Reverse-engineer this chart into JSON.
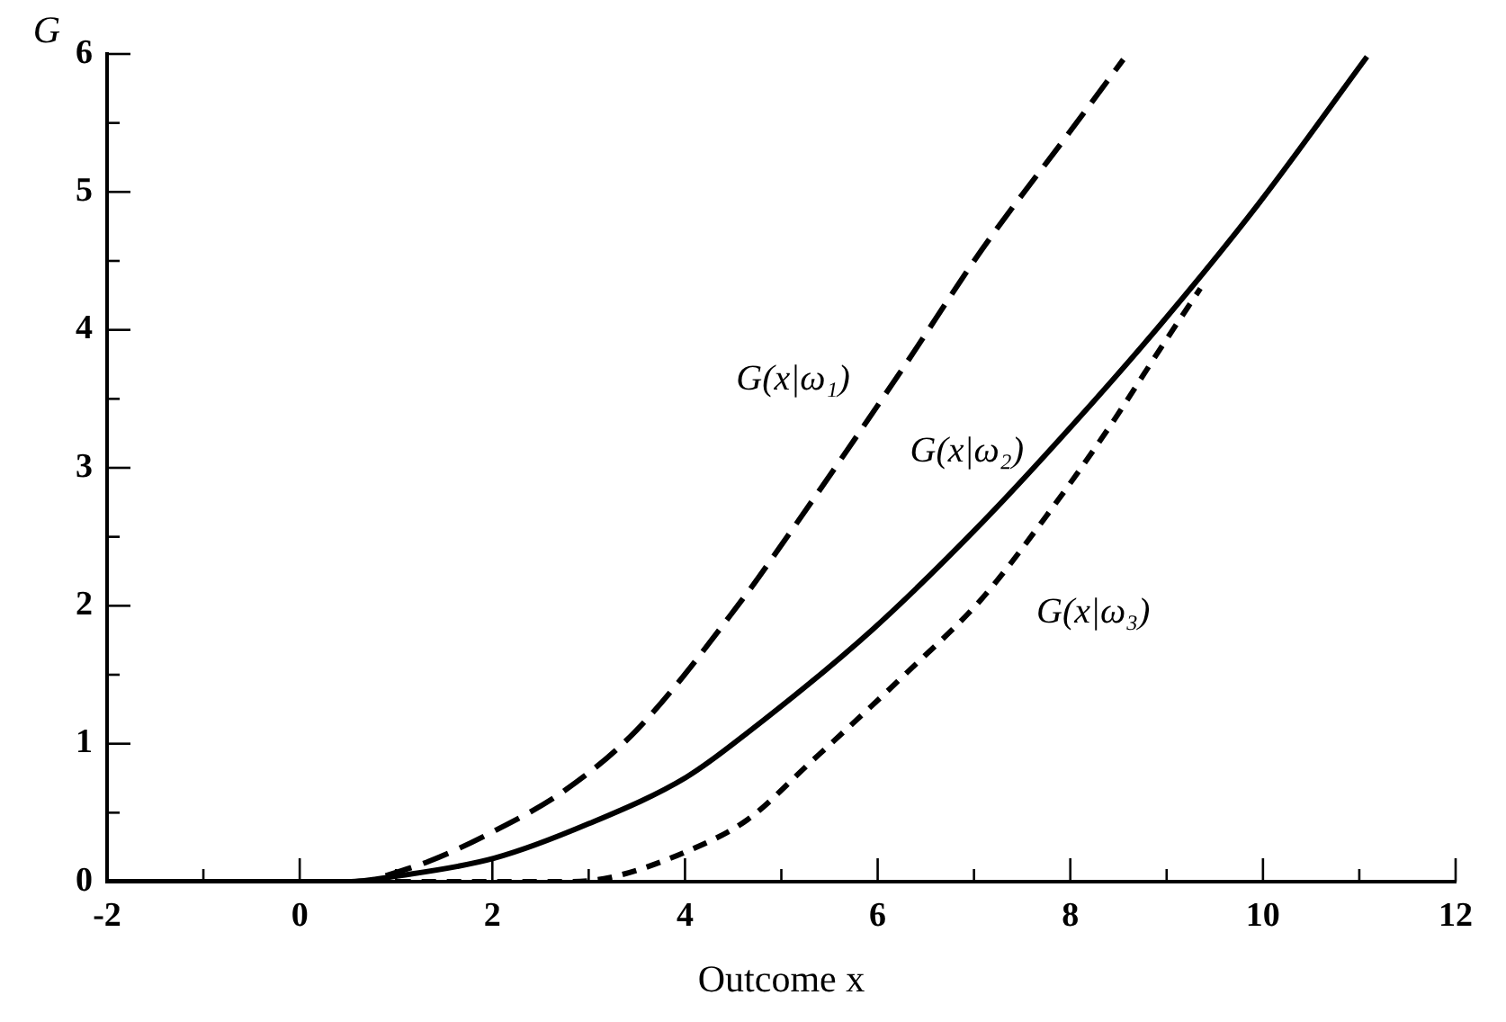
{
  "chart_data": {
    "type": "line",
    "xlabel": "Outcome x",
    "ylabel": "G",
    "xlim": [
      -2,
      12
    ],
    "ylim": [
      0,
      6
    ],
    "xticks": [
      -2,
      {
        "value": -1,
        "label": null
      },
      0,
      {
        "value": 1,
        "label": null
      },
      2,
      {
        "value": 3,
        "label": null
      },
      4,
      {
        "value": 5,
        "label": null
      },
      6,
      {
        "value": 7,
        "label": null
      },
      8,
      {
        "value": 9,
        "label": null
      },
      10,
      {
        "value": 11,
        "label": null
      },
      12
    ],
    "yticks": [
      0,
      {
        "value": 0.5,
        "label": null
      },
      1,
      {
        "value": 1.5,
        "label": null
      },
      2,
      {
        "value": 2.5,
        "label": null
      },
      3,
      {
        "value": 3.5,
        "label": null
      },
      4,
      {
        "value": 4.5,
        "label": null
      },
      5,
      {
        "value": 5.5,
        "label": null
      },
      6
    ],
    "grid": false,
    "legend": false,
    "marker": "none",
    "series": [
      {
        "type": "line",
        "name": "G(x|ω₁)",
        "color": "#000000",
        "line_style": "dashed",
        "x": [
          0.7,
          1.35,
          2,
          2.75,
          3.5,
          4.6,
          4.95,
          6.28,
          7.08,
          8.01,
          8.55
        ],
        "values": [
          0,
          0.15,
          0.36,
          0.66,
          1.1,
          2.05,
          2.39,
          3.74,
          4.58,
          5.45,
          5.96
        ]
      },
      {
        "type": "line",
        "name": "G(x|ω₂)",
        "color": "#000000",
        "line_style": "solid",
        "x": [
          -2,
          0.5,
          1,
          2.02,
          3,
          4.02,
          4.65,
          5.95,
          7.08,
          8.01,
          8.95,
          9.95,
          11.08
        ],
        "values": [
          0,
          0,
          0.04,
          0.17,
          0.42,
          0.76,
          1.08,
          1.83,
          2.6,
          3.3,
          4.05,
          4.91,
          5.98
        ]
      },
      {
        "type": "line",
        "name": "G(x|ω₃)",
        "color": "#000000",
        "line_style": "dotted",
        "x": [
          1,
          2.8,
          3.22,
          4.02,
          4.65,
          5.28,
          6.28,
          7.08,
          7.75,
          8.41,
          8.95,
          9.35
        ],
        "values": [
          0,
          0,
          0.03,
          0.22,
          0.45,
          0.85,
          1.5,
          2.05,
          2.65,
          3.3,
          3.88,
          4.3
        ]
      }
    ]
  }
}
